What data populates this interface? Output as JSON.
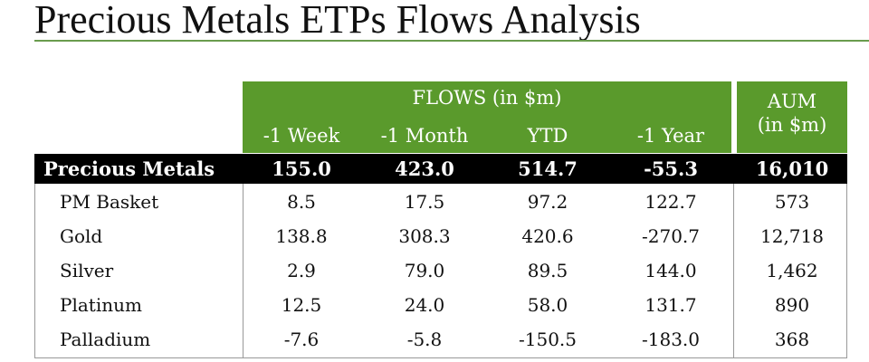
{
  "title": "Precious Metals ETPs Flows Analysis",
  "header": {
    "flows_label": "FLOWS (in $m)",
    "aum_line1": "AUM",
    "aum_line2": "(in $m)",
    "columns": [
      "-1 Week",
      "-1 Month",
      "YTD",
      "-1 Year"
    ]
  },
  "summary": {
    "label": "Precious Metals",
    "values": [
      "155.0",
      "423.0",
      "514.7",
      "-55.3",
      "16,010"
    ]
  },
  "rows": [
    {
      "label": "PM Basket",
      "values": [
        "8.5",
        "17.5",
        "97.2",
        "122.7",
        "573"
      ]
    },
    {
      "label": "Gold",
      "values": [
        "138.8",
        "308.3",
        "420.6",
        "-270.7",
        "12,718"
      ]
    },
    {
      "label": "Silver",
      "values": [
        "2.9",
        "79.0",
        "89.5",
        "144.0",
        "1,462"
      ]
    },
    {
      "label": "Platinum",
      "values": [
        "12.5",
        "24.0",
        "58.0",
        "131.7",
        "890"
      ]
    },
    {
      "label": "Palladium",
      "values": [
        "-7.6",
        "-5.8",
        "-150.5",
        "-183.0",
        "368"
      ]
    }
  ],
  "colors": {
    "header_green": "#5a9a2c",
    "summary_bg": "#000000",
    "rule_green": "#6a9c4e"
  }
}
